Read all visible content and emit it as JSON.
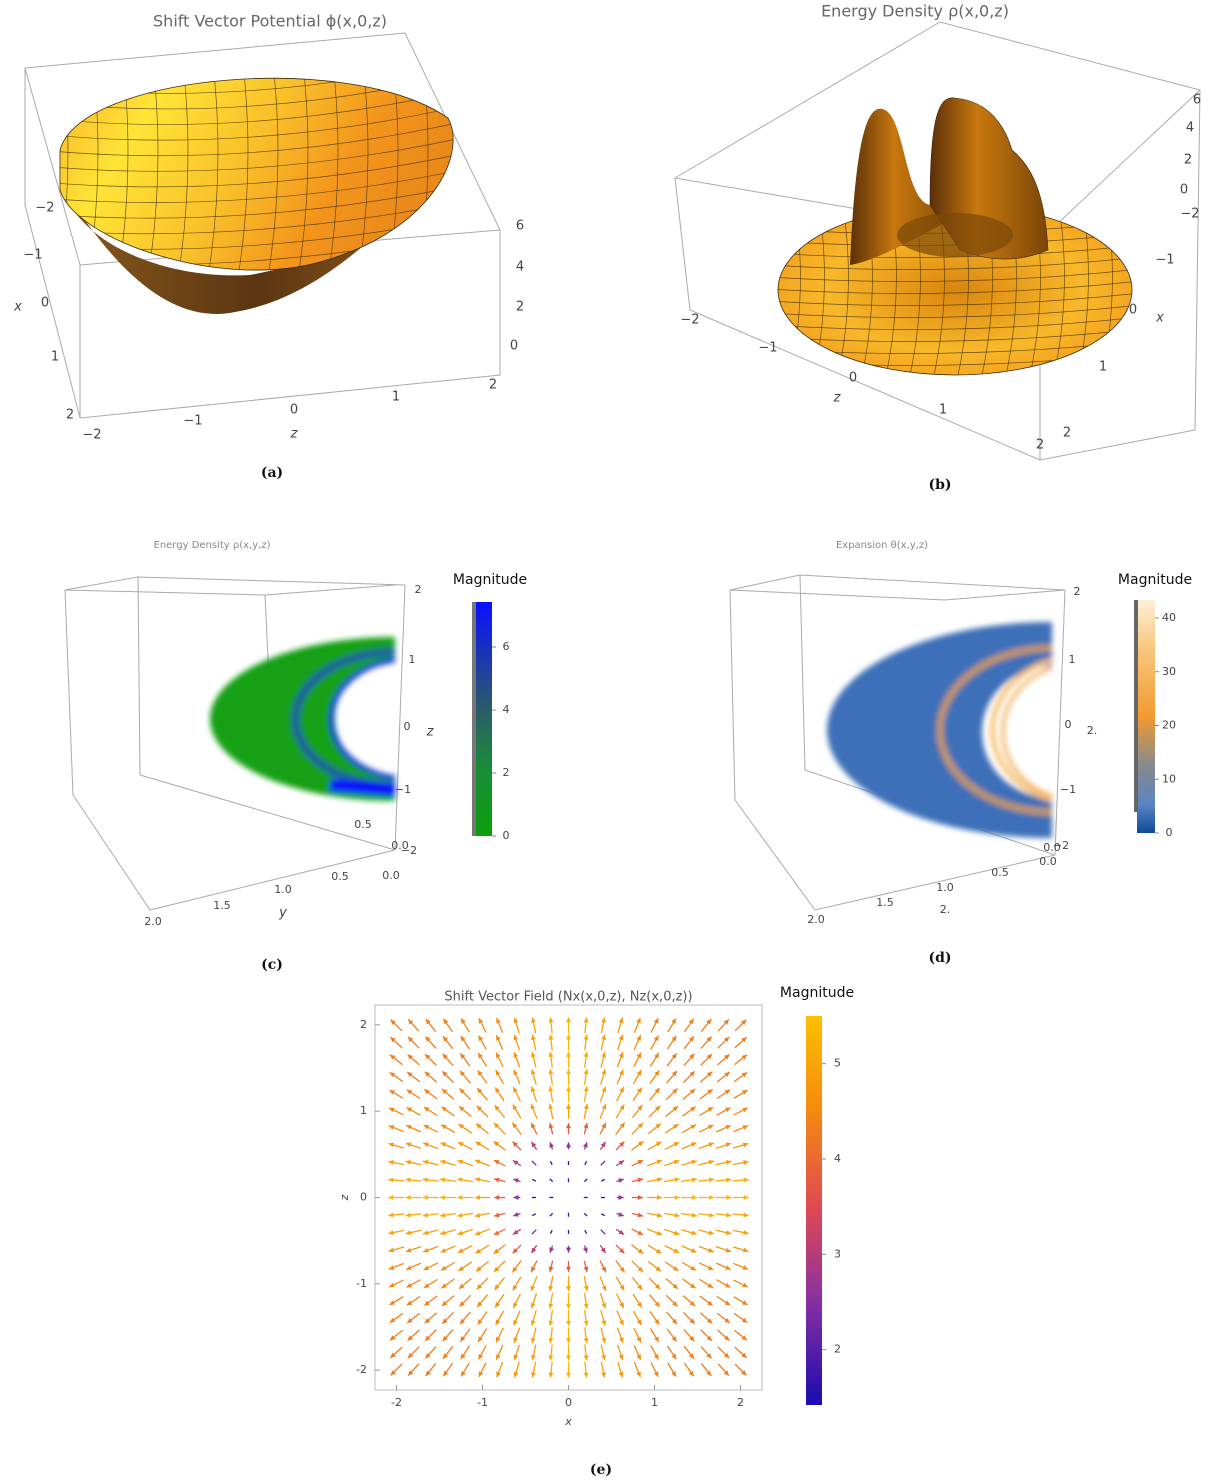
{
  "panels": [
    {
      "title": "Shift Vector Potential ϕ(x,0,z)",
      "caption": "(a)",
      "labels": [
        "−2",
        "−1",
        "0",
        "1",
        "2",
        "6",
        "4",
        "2",
        "0",
        "−2",
        "−1",
        "0",
        "1",
        "2"
      ],
      "axes": [
        "x",
        "z"
      ]
    },
    {
      "title": "Energy Density ρ(x,0,z)",
      "caption": "(b)",
      "labels": [
        "6",
        "4",
        "2",
        "0",
        "−2",
        "−1",
        "0",
        "1",
        "2",
        "−2",
        "−1",
        "0",
        "1",
        "2"
      ],
      "axes": [
        "x",
        "z"
      ]
    },
    {
      "title": "Energy Density ρ(x,y,z)",
      "caption": "(c)",
      "labels": [
        "2",
        "1",
        "0",
        "−1",
        "0.5",
        "0.0",
        "−2",
        "0.5",
        "0.0",
        "1.0",
        "1.5",
        "2.0"
      ],
      "axes": [
        "z",
        "y"
      ],
      "colorbar": {
        "title": "Magnitude",
        "ticks": [
          6,
          4,
          2,
          0
        ]
      }
    },
    {
      "title": "Expansion θ(x,y,z)",
      "caption": "(d)",
      "labels": [
        "2",
        "1",
        "0",
        "2.",
        "−1",
        "0.0",
        "−2",
        "0.0",
        "0.5",
        "1.0",
        "1.5",
        "2.0",
        "2."
      ],
      "axes": [],
      "colorbar": {
        "title": "Magnitude",
        "ticks": [
          40,
          30,
          20,
          10,
          0
        ]
      }
    }
  ],
  "chart_data": {
    "type": "quiver",
    "title": "Shift Vector Field (Nx(x,0,z), Nz(x,0,z))",
    "caption": "(e)",
    "xlabel": "x",
    "ylabel": "z",
    "xlim": [
      -2.25,
      2.25
    ],
    "ylim": [
      -2.23,
      2.23
    ],
    "xticks": [
      -2,
      -1,
      0,
      1,
      2
    ],
    "yticks": [
      -2,
      -1,
      0,
      1,
      2
    ],
    "colorbar": {
      "title": "Magnitude",
      "lim": [
        1.42,
        5.5
      ],
      "ticks": [
        2,
        3,
        4,
        5
      ]
    }
  }
}
